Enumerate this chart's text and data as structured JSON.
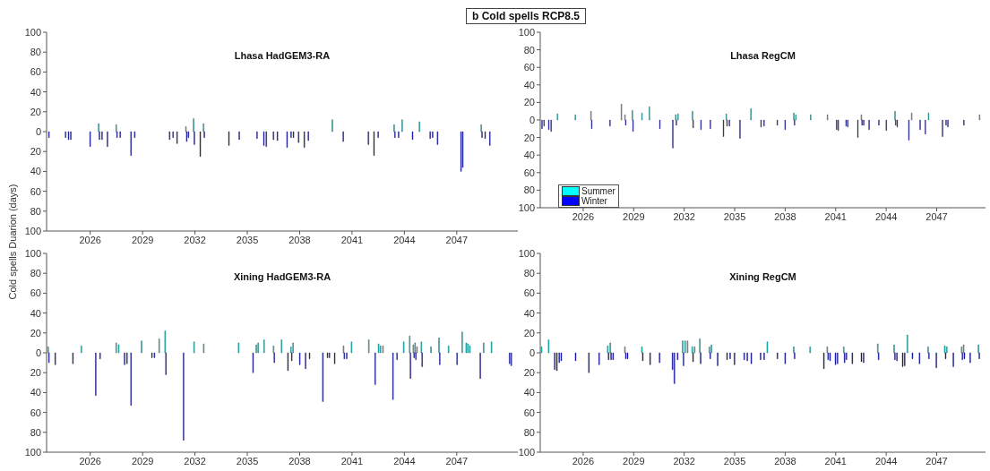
{
  "chart_data": [
    {
      "type": "bar",
      "title": "b Cold spells RCP8.5",
      "annotations": [
        "Lhasa HadGEM3-RA"
      ],
      "xlim": [
        2023.5,
        2050.5
      ],
      "xticks": [
        2026,
        2029,
        2032,
        2035,
        2038,
        2041,
        2044,
        2047
      ],
      "ylim": [
        -100,
        100
      ],
      "yticks": [
        {
          "value": -100,
          "label": "100"
        },
        {
          "value": -80,
          "label": "80"
        },
        {
          "value": -60,
          "label": "60"
        },
        {
          "value": -40,
          "label": "40"
        },
        {
          "value": -20,
          "label": "20"
        },
        0,
        20,
        40,
        60,
        80,
        100
      ],
      "series": [
        {
          "color": "#00ffff",
          "x": [
            2026.51,
            2027.52,
            2031.51,
            2031.95,
            2032.52,
            2039.9,
            2043.44,
            2043.9,
            2044.89,
            2048.43
          ],
          "values": [
            8,
            7,
            5,
            13,
            8,
            12,
            7,
            12,
            10,
            7
          ]
        },
        {
          "color": "#0000ff",
          "x": [
            2023.62,
            2024.57,
            2024.74,
            2024.87,
            2025.98,
            2026.51,
            2026.66,
            2026.97,
            2027.52,
            2027.7,
            2028.32,
            2028.53,
            2030.53,
            2030.73,
            2030.96,
            2031.51,
            2031.61,
            2031.95,
            2032.29,
            2032.52,
            2033.93,
            2034.52,
            2035.54,
            2035.93,
            2036.07,
            2036.48,
            2036.71,
            2037.26,
            2037.49,
            2037.63,
            2037.92,
            2038.25,
            2038.48,
            2040.48,
            2041.92,
            2042.24,
            2042.48,
            2043.44,
            2043.65,
            2044.45,
            2045.46,
            2045.6,
            2045.88,
            2047.23,
            2047.33,
            2048.43,
            2048.61,
            2048.88
          ],
          "values": [
            -6,
            -6,
            -8,
            -8,
            -15,
            -8,
            -8,
            -15,
            -6,
            -6,
            -24,
            -6,
            -8,
            -6,
            -12,
            -10,
            -6,
            -13,
            -25,
            -6,
            -14,
            -8,
            -7,
            -14,
            -15,
            -8,
            -9,
            -16,
            -6,
            -6,
            -11,
            -16,
            -9,
            -10,
            -13,
            -24,
            -6,
            -6,
            -6,
            -8,
            -7,
            -6,
            -13,
            -40,
            -36,
            -6,
            -7,
            -14
          ]
        }
      ]
    },
    {
      "type": "bar",
      "annotations": [
        "Lhasa RegCM"
      ],
      "legend": "bottom left",
      "xlim": [
        2023.45,
        2049.9
      ],
      "xticks": [
        2026,
        2029,
        2032,
        2035,
        2038,
        2041,
        2044,
        2047
      ],
      "ylim": [
        -100,
        100
      ],
      "yticks": [
        {
          "value": -100,
          "label": "100"
        },
        {
          "value": -80,
          "label": "80"
        },
        {
          "value": -60,
          "label": "60"
        },
        {
          "value": -40,
          "label": "40"
        },
        {
          "value": -20,
          "label": "20"
        },
        0,
        20,
        40,
        60,
        80,
        100
      ],
      "series": [
        {
          "name": "Summer",
          "color": "#00ffff",
          "x": [
            2024.5,
            2025.56,
            2026.49,
            2028.3,
            2028.51,
            2028.95,
            2029.52,
            2029.96,
            2031.52,
            2031.66,
            2032.52,
            2034.53,
            2035.99,
            2038.54,
            2038.66,
            2039.54,
            2040.54,
            2042.55,
            2044.55,
            2045.54,
            2046.54,
            2049.57
          ],
          "values": [
            7,
            6,
            10,
            18,
            6,
            11,
            8,
            15,
            6,
            7,
            10,
            7,
            13,
            8,
            6,
            6,
            6,
            6,
            10,
            8,
            8,
            6
          ]
        },
        {
          "name": "Winter",
          "color": "#0000ff",
          "x": [
            2023.54,
            2023.66,
            2023.94,
            2024.08,
            2026.49,
            2027.58,
            2028.51,
            2028.95,
            2030.54,
            2031.31,
            2031.52,
            2032.52,
            2032.98,
            2033.54,
            2034.32,
            2034.53,
            2034.67,
            2035.3,
            2036.55,
            2036.73,
            2037.52,
            2037.98,
            2038.54,
            2041.04,
            2041.14,
            2041.6,
            2041.7,
            2042.3,
            2042.55,
            2042.65,
            2042.97,
            2043.55,
            2043.99,
            2044.55,
            2044.64,
            2045.33,
            2046.0,
            2046.31,
            2047.33,
            2047.54,
            2047.65,
            2048.6
          ],
          "values": [
            -10,
            -7,
            -11,
            -13,
            -10,
            -7,
            -6,
            -13,
            -10,
            -32,
            -6,
            -9,
            -11,
            -10,
            -19,
            -7,
            -7,
            -21,
            -8,
            -7,
            -6,
            -11,
            -6,
            -11,
            -12,
            -7,
            -8,
            -20,
            -6,
            -6,
            -11,
            -6,
            -12,
            -6,
            -8,
            -23,
            -11,
            -16,
            -19,
            -6,
            -8,
            -6
          ]
        }
      ]
    },
    {
      "type": "bar",
      "annotations": [
        "Xining HadGEM3-RA"
      ],
      "ylabel": "Cold spells Duarion (days)",
      "xlim": [
        2023.5,
        2050.5
      ],
      "xticks": [
        2026,
        2029,
        2032,
        2035,
        2038,
        2041,
        2044,
        2047
      ],
      "ylim": [
        -100,
        100
      ],
      "yticks": [
        {
          "value": -100,
          "label": "100"
        },
        {
          "value": -80,
          "label": "80"
        },
        {
          "value": -60,
          "label": "60"
        },
        {
          "value": -40,
          "label": "40"
        },
        {
          "value": -20,
          "label": "20"
        },
        0,
        20,
        40,
        60,
        80,
        100
      ],
      "series": [
        {
          "color": "#00ffff",
          "x": [
            2023.62,
            2025.52,
            2027.52,
            2027.66,
            2028.97,
            2029.98,
            2030.32,
            2031.98,
            2032.53,
            2034.53,
            2035.54,
            2035.65,
            2035.99,
            2036.53,
            2036.99,
            2037.53,
            2037.65,
            2040.54,
            2041.0,
            2041.99,
            2042.55,
            2042.66,
            2042.8,
            2043.99,
            2044.33,
            2044.54,
            2044.64,
            2044.75,
            2045.0,
            2045.55,
            2046.01,
            2046.56,
            2047.34,
            2047.57,
            2047.67,
            2047.78,
            2048.57,
            2049.02
          ],
          "values": [
            6,
            7,
            10,
            8,
            12,
            14,
            22,
            11,
            9,
            10,
            8,
            10,
            13,
            7,
            13,
            6,
            10,
            7,
            11,
            13,
            9,
            7,
            7,
            11,
            17,
            8,
            10,
            6,
            11,
            6,
            15,
            7,
            21,
            10,
            9,
            7,
            10,
            11
          ]
        },
        {
          "color": "#0000ff",
          "x": [
            2023.62,
            2023.98,
            2024.99,
            2026.3,
            2026.55,
            2027.95,
            2028.09,
            2028.32,
            2029.52,
            2029.66,
            2030.32,
            2031.33,
            2035.31,
            2036.53,
            2037.31,
            2037.53,
            2037.99,
            2038.32,
            2038.55,
            2039.31,
            2039.58,
            2039.69,
            2039.99,
            2040.54,
            2040.68,
            2042.31,
            2043.33,
            2043.56,
            2044.33,
            2044.54,
            2044.64,
            2045.0,
            2046.01,
            2047.0,
            2048.33,
            2050.01,
            2050.11
          ],
          "values": [
            -10,
            -12,
            -11,
            -43,
            -6,
            -12,
            -11,
            -53,
            -5,
            -5,
            -22,
            -88,
            -20,
            -10,
            -18,
            -8,
            -12,
            -16,
            -6,
            -49,
            -5,
            -5,
            -11,
            -6,
            -6,
            -32,
            -47,
            -7,
            -26,
            -5,
            -7,
            -14,
            -12,
            -12,
            -26,
            -11,
            -13
          ]
        }
      ]
    },
    {
      "type": "bar",
      "annotations": [
        "Xining RegCM"
      ],
      "xlim": [
        2023.45,
        2049.9
      ],
      "xticks": [
        2026,
        2029,
        2032,
        2035,
        2038,
        2041,
        2044,
        2047
      ],
      "ylim": [
        -100,
        100
      ],
      "yticks": [
        {
          "value": -100,
          "label": "100"
        },
        {
          "value": -80,
          "label": "80"
        },
        {
          "value": -60,
          "label": "60"
        },
        {
          "value": -40,
          "label": "40"
        },
        {
          "value": -20,
          "label": "20"
        },
        0,
        20,
        40,
        60,
        80,
        100
      ],
      "series": [
        {
          "color": "#00ffff",
          "x": [
            2023.56,
            2023.98,
            2027.49,
            2027.64,
            2028.51,
            2029.52,
            2031.94,
            2032.09,
            2032.23,
            2032.51,
            2032.65,
            2032.96,
            2033.53,
            2033.65,
            2036.97,
            2038.54,
            2039.51,
            2040.53,
            2041.51,
            2043.53,
            2044.5,
            2045.29,
            2046.52,
            2047.51,
            2047.63,
            2048.51,
            2048.63,
            2049.51
          ],
          "values": [
            6,
            13,
            7,
            10,
            6,
            6,
            12,
            12,
            12,
            6,
            6,
            14,
            6,
            8,
            11,
            6,
            6,
            6,
            6,
            9,
            8,
            18,
            6,
            7,
            6,
            6,
            8,
            8
          ]
        },
        {
          "color": "#0000ff",
          "x": [
            2024.29,
            2024.42,
            2024.56,
            2024.68,
            2025.53,
            2026.32,
            2026.93,
            2027.49,
            2027.64,
            2027.76,
            2028.51,
            2028.62,
            2029.52,
            2029.96,
            2030.52,
            2031.29,
            2031.4,
            2031.59,
            2031.94,
            2032.51,
            2032.96,
            2033.53,
            2033.97,
            2034.53,
            2034.71,
            2034.97,
            2035.55,
            2035.73,
            2035.97,
            2036.52,
            2036.73,
            2037.52,
            2037.98,
            2038.54,
            2040.28,
            2040.53,
            2040.65,
            2040.97,
            2041.09,
            2041.51,
            2041.62,
            2041.97,
            2042.51,
            2042.64,
            2043.53,
            2044.5,
            2044.62,
            2044.96,
            2045.08,
            2045.54,
            2045.96,
            2046.52,
            2046.96,
            2047.51,
            2047.97,
            2048.51,
            2048.63,
            2048.97,
            2049.51
          ],
          "values": [
            -17,
            -18,
            -10,
            -8,
            -8,
            -20,
            -12,
            -7,
            -7,
            -7,
            -6,
            -6,
            -8,
            -12,
            -10,
            -17,
            -31,
            -7,
            -13,
            -9,
            -11,
            -6,
            -13,
            -7,
            -6,
            -12,
            -7,
            -8,
            -11,
            -7,
            -7,
            -6,
            -11,
            -6,
            -16,
            -7,
            -8,
            -12,
            -11,
            -10,
            -7,
            -11,
            -9,
            -10,
            -7,
            -7,
            -8,
            -14,
            -13,
            -6,
            -11,
            -6,
            -15,
            -6,
            -14,
            -7,
            -6,
            -10,
            -6
          ]
        }
      ]
    }
  ]
}
